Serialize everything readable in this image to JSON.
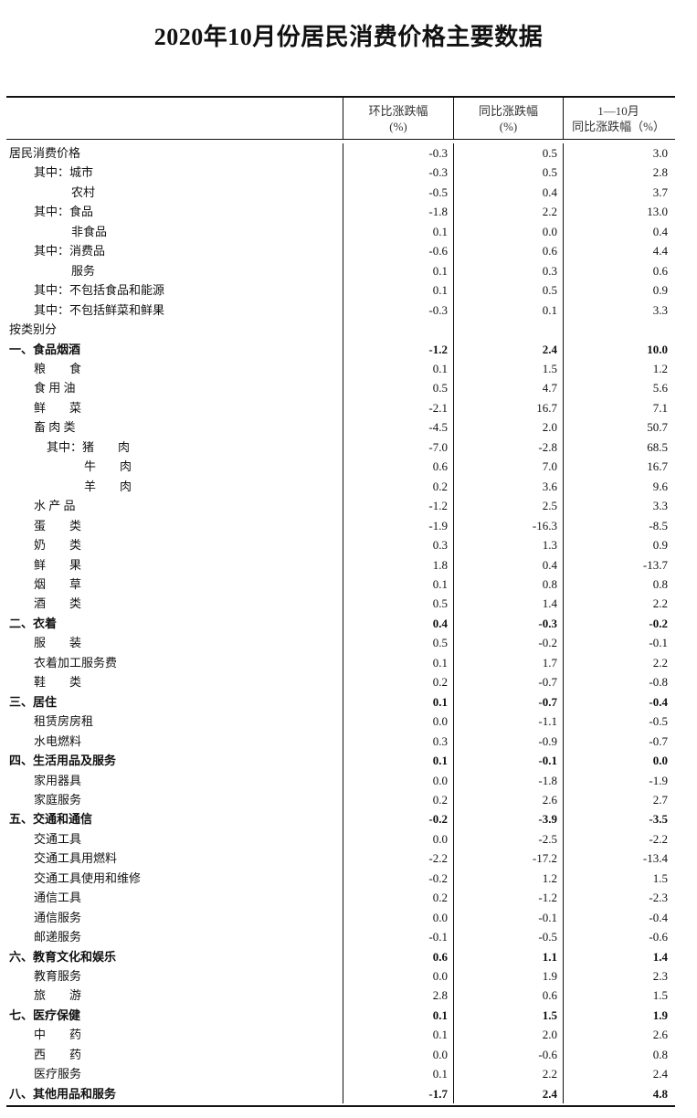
{
  "title": "2020年10月份居民消费价格主要数据",
  "headers": [
    {
      "line1": "",
      "line2": ""
    },
    {
      "line1": "环比涨跌幅",
      "line2": "(%)"
    },
    {
      "line1": "同比涨跌幅",
      "line2": "(%)"
    },
    {
      "line1": "1—10月",
      "line2": "同比涨跌幅（%）"
    }
  ],
  "rows": [
    {
      "label": "居民消费价格",
      "level": 0,
      "bold": false,
      "mom": "-0.3",
      "yoy": "0.5",
      "ytd": "3.0"
    },
    {
      "label": "其中：城市",
      "level": 1,
      "bold": false,
      "mom": "-0.3",
      "yoy": "0.5",
      "ytd": "2.8"
    },
    {
      "label": "农村",
      "level": 2,
      "bold": false,
      "mom": "-0.5",
      "yoy": "0.4",
      "ytd": "3.7"
    },
    {
      "label": "其中：食品",
      "level": 1,
      "bold": false,
      "mom": "-1.8",
      "yoy": "2.2",
      "ytd": "13.0"
    },
    {
      "label": "非食品",
      "level": 2,
      "bold": false,
      "mom": "0.1",
      "yoy": "0.0",
      "ytd": "0.4"
    },
    {
      "label": "其中：消费品",
      "level": 1,
      "bold": false,
      "mom": "-0.6",
      "yoy": "0.6",
      "ytd": "4.4"
    },
    {
      "label": "服务",
      "level": 2,
      "bold": false,
      "mom": "0.1",
      "yoy": "0.3",
      "ytd": "0.6"
    },
    {
      "label": "其中：不包括食品和能源",
      "level": 1,
      "bold": false,
      "mom": "0.1",
      "yoy": "0.5",
      "ytd": "0.9"
    },
    {
      "label": "其中：不包括鲜菜和鲜果",
      "level": 1,
      "bold": false,
      "mom": "-0.3",
      "yoy": "0.1",
      "ytd": "3.3"
    },
    {
      "label": "按类别分",
      "level": 0,
      "bold": false,
      "mom": "",
      "yoy": "",
      "ytd": ""
    },
    {
      "label": "一、食品烟酒",
      "level": 0,
      "bold": true,
      "mom": "-1.2",
      "yoy": "2.4",
      "ytd": "10.0"
    },
    {
      "label": "粮　　食",
      "level": 1,
      "bold": false,
      "mom": "0.1",
      "yoy": "1.5",
      "ytd": "1.2"
    },
    {
      "label": "食 用 油",
      "level": 1,
      "bold": false,
      "mom": "0.5",
      "yoy": "4.7",
      "ytd": "5.6"
    },
    {
      "label": "鲜　　菜",
      "level": 1,
      "bold": false,
      "mom": "-2.1",
      "yoy": "16.7",
      "ytd": "7.1"
    },
    {
      "label": "畜 肉 类",
      "level": 1,
      "bold": false,
      "mom": "-4.5",
      "yoy": "2.0",
      "ytd": "50.7"
    },
    {
      "label": "其中：猪　　肉",
      "level": 3,
      "bold": false,
      "mom": "-7.0",
      "yoy": "-2.8",
      "ytd": "68.5"
    },
    {
      "label": "牛　　肉",
      "level": 4,
      "bold": false,
      "mom": "0.6",
      "yoy": "7.0",
      "ytd": "16.7"
    },
    {
      "label": "羊　　肉",
      "level": 4,
      "bold": false,
      "mom": "0.2",
      "yoy": "3.6",
      "ytd": "9.6"
    },
    {
      "label": "水 产 品",
      "level": 1,
      "bold": false,
      "mom": "-1.2",
      "yoy": "2.5",
      "ytd": "3.3"
    },
    {
      "label": "蛋　　类",
      "level": 1,
      "bold": false,
      "mom": "-1.9",
      "yoy": "-16.3",
      "ytd": "-8.5"
    },
    {
      "label": "奶　　类",
      "level": 1,
      "bold": false,
      "mom": "0.3",
      "yoy": "1.3",
      "ytd": "0.9"
    },
    {
      "label": "鲜　　果",
      "level": 1,
      "bold": false,
      "mom": "1.8",
      "yoy": "0.4",
      "ytd": "-13.7"
    },
    {
      "label": "烟　　草",
      "level": 1,
      "bold": false,
      "mom": "0.1",
      "yoy": "0.8",
      "ytd": "0.8"
    },
    {
      "label": "酒　　类",
      "level": 1,
      "bold": false,
      "mom": "0.5",
      "yoy": "1.4",
      "ytd": "2.2"
    },
    {
      "label": "二、衣着",
      "level": 0,
      "bold": true,
      "mom": "0.4",
      "yoy": "-0.3",
      "ytd": "-0.2"
    },
    {
      "label": "服　　装",
      "level": 1,
      "bold": false,
      "mom": "0.5",
      "yoy": "-0.2",
      "ytd": "-0.1"
    },
    {
      "label": "衣着加工服务费",
      "level": 1,
      "bold": false,
      "mom": "0.1",
      "yoy": "1.7",
      "ytd": "2.2"
    },
    {
      "label": "鞋　　类",
      "level": 1,
      "bold": false,
      "mom": "0.2",
      "yoy": "-0.7",
      "ytd": "-0.8"
    },
    {
      "label": "三、居住",
      "level": 0,
      "bold": true,
      "mom": "0.1",
      "yoy": "-0.7",
      "ytd": "-0.4"
    },
    {
      "label": "租赁房房租",
      "level": 1,
      "bold": false,
      "mom": "0.0",
      "yoy": "-1.1",
      "ytd": "-0.5"
    },
    {
      "label": "水电燃料",
      "level": 1,
      "bold": false,
      "mom": "0.3",
      "yoy": "-0.9",
      "ytd": "-0.7"
    },
    {
      "label": "四、生活用品及服务",
      "level": 0,
      "bold": true,
      "mom": "0.1",
      "yoy": "-0.1",
      "ytd": "0.0"
    },
    {
      "label": "家用器具",
      "level": 1,
      "bold": false,
      "mom": "0.0",
      "yoy": "-1.8",
      "ytd": "-1.9"
    },
    {
      "label": "家庭服务",
      "level": 1,
      "bold": false,
      "mom": "0.2",
      "yoy": "2.6",
      "ytd": "2.7"
    },
    {
      "label": "五、交通和通信",
      "level": 0,
      "bold": true,
      "mom": "-0.2",
      "yoy": "-3.9",
      "ytd": "-3.5"
    },
    {
      "label": "交通工具",
      "level": 1,
      "bold": false,
      "mom": "0.0",
      "yoy": "-2.5",
      "ytd": "-2.2"
    },
    {
      "label": "交通工具用燃料",
      "level": 1,
      "bold": false,
      "mom": "-2.2",
      "yoy": "-17.2",
      "ytd": "-13.4"
    },
    {
      "label": "交通工具使用和维修",
      "level": 1,
      "bold": false,
      "mom": "-0.2",
      "yoy": "1.2",
      "ytd": "1.5"
    },
    {
      "label": "通信工具",
      "level": 1,
      "bold": false,
      "mom": "0.2",
      "yoy": "-1.2",
      "ytd": "-2.3"
    },
    {
      "label": "通信服务",
      "level": 1,
      "bold": false,
      "mom": "0.0",
      "yoy": "-0.1",
      "ytd": "-0.4"
    },
    {
      "label": "邮递服务",
      "level": 1,
      "bold": false,
      "mom": "-0.1",
      "yoy": "-0.5",
      "ytd": "-0.6"
    },
    {
      "label": "六、教育文化和娱乐",
      "level": 0,
      "bold": true,
      "mom": "0.6",
      "yoy": "1.1",
      "ytd": "1.4"
    },
    {
      "label": "教育服务",
      "level": 1,
      "bold": false,
      "mom": "0.0",
      "yoy": "1.9",
      "ytd": "2.3"
    },
    {
      "label": "旅　　游",
      "level": 1,
      "bold": false,
      "mom": "2.8",
      "yoy": "0.6",
      "ytd": "1.5"
    },
    {
      "label": "七、医疗保健",
      "level": 0,
      "bold": true,
      "mom": "0.1",
      "yoy": "1.5",
      "ytd": "1.9"
    },
    {
      "label": "中　　药",
      "level": 1,
      "bold": false,
      "mom": "0.1",
      "yoy": "2.0",
      "ytd": "2.6"
    },
    {
      "label": "西　　药",
      "level": 1,
      "bold": false,
      "mom": "0.0",
      "yoy": "-0.6",
      "ytd": "0.8"
    },
    {
      "label": "医疗服务",
      "level": 1,
      "bold": false,
      "mom": "0.1",
      "yoy": "2.2",
      "ytd": "2.4"
    },
    {
      "label": "八、其他用品和服务",
      "level": 0,
      "bold": true,
      "mom": "-1.7",
      "yoy": "2.4",
      "ytd": "4.8"
    }
  ]
}
